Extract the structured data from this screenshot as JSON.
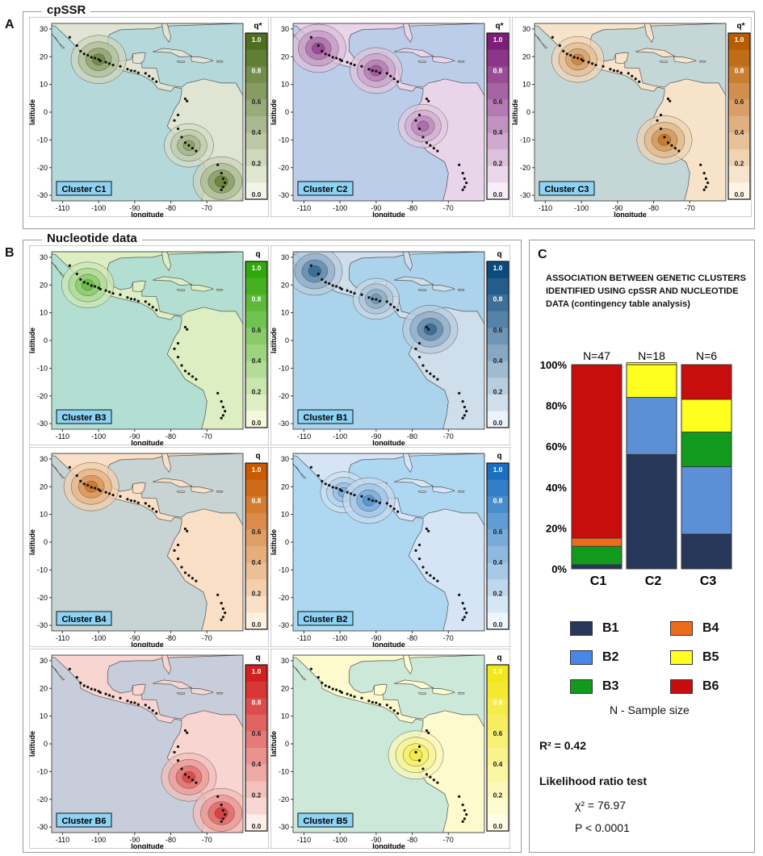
{
  "sections": {
    "a": {
      "letter": "A",
      "title": "cpSSR"
    },
    "b": {
      "letter": "B",
      "title": "Nucleotide data"
    },
    "c": {
      "letter": "C",
      "title": "ASSOCIATION BETWEEN GENETIC CLUSTERS IDENTIFIED USING cpSSR AND NUCLEOTIDE DATA (contingency table analysis)"
    }
  },
  "maps": {
    "x_label": "longitude",
    "y_label": "latitude",
    "x_ticks": [
      "-110",
      "-100",
      "-90",
      "-80",
      "-70"
    ],
    "y_ticks": [
      "30",
      "20",
      "10",
      "0",
      "-10",
      "-20",
      "-30"
    ],
    "scale_ticks": [
      "1.0",
      "0.8",
      "0.6",
      "0.4",
      "0.2",
      "0.0"
    ],
    "ocean_color": "#8fd3f4",
    "panels": [
      {
        "id": "C1",
        "label": "Cluster C1",
        "qhead": "q*",
        "color": "#4f6f1e",
        "low": "#f3f5ea",
        "hotspots": [
          [
            -100,
            19,
            0.9
          ],
          [
            -75,
            -12,
            0.7
          ],
          [
            -66,
            -25,
            0.95
          ]
        ]
      },
      {
        "id": "C2",
        "label": "Cluster C2",
        "qhead": "q*",
        "color": "#7d1f7a",
        "low": "#f8eef8",
        "hotspots": [
          [
            -106,
            23,
            0.9
          ],
          [
            -90,
            15,
            0.8
          ],
          [
            -77,
            -5,
            0.7
          ]
        ]
      },
      {
        "id": "C3",
        "label": "Cluster C3",
        "qhead": "q*",
        "color": "#b85c00",
        "low": "#fff5e6",
        "hotspots": [
          [
            -101,
            19,
            0.8
          ],
          [
            -77,
            -10,
            0.9
          ]
        ]
      },
      {
        "id": "B3",
        "label": "Cluster B3",
        "qhead": "q",
        "color": "#2fa80b",
        "low": "#f5f8dc",
        "hotspots": [
          [
            -103,
            20,
            0.8
          ]
        ]
      },
      {
        "id": "B1",
        "label": "Cluster B1",
        "qhead": "q",
        "color": "#0b4a7d",
        "low": "#eaf2fa",
        "hotspots": [
          [
            -107,
            25,
            0.9
          ],
          [
            -90,
            15,
            0.6
          ],
          [
            -75,
            4,
            0.9
          ]
        ]
      },
      {
        "id": "B4",
        "label": "Cluster B4",
        "qhead": "q",
        "color": "#c85a00",
        "low": "#fff1e0",
        "hotspots": [
          [
            -102,
            20,
            0.9
          ]
        ]
      },
      {
        "id": "B2",
        "label": "Cluster B2",
        "qhead": "q",
        "color": "#1a6fc0",
        "low": "#eef5fc",
        "hotspots": [
          [
            -99,
            18,
            0.6
          ],
          [
            -92,
            15,
            0.8
          ]
        ]
      },
      {
        "id": "B6",
        "label": "Cluster B6",
        "qhead": "q",
        "color": "#d21f1f",
        "low": "#fdeee8",
        "hotspots": [
          [
            -75,
            -12,
            0.9
          ],
          [
            -66,
            -25,
            0.95
          ]
        ]
      },
      {
        "id": "B5",
        "label": "Cluster B5",
        "qhead": "q",
        "color": "#f2e71a",
        "low": "#fffde6",
        "hotspots": [
          [
            -79,
            -4,
            0.9
          ]
        ]
      }
    ]
  },
  "chart_data": {
    "type": "bar",
    "stacked": true,
    "categories": [
      "C1",
      "C2",
      "C3"
    ],
    "top_labels": [
      "N=47",
      "N=18",
      "N=6"
    ],
    "ylim": [
      0,
      100
    ],
    "y_ticks": [
      "100%",
      "80%",
      "60%",
      "40%",
      "20%",
      "0%"
    ],
    "series": [
      {
        "name": "B1",
        "color": "#27375a",
        "values": [
          2,
          56,
          17
        ]
      },
      {
        "name": "B2",
        "color": "#5b8fd6",
        "values": [
          0,
          28,
          33
        ]
      },
      {
        "name": "B3",
        "color": "#119a1d",
        "values": [
          9,
          0,
          17
        ]
      },
      {
        "name": "B4",
        "color": "#ec6c1b",
        "values": [
          4,
          0,
          0
        ]
      },
      {
        "name": "B5",
        "color": "#ffff1f",
        "values": [
          0,
          17,
          16
        ]
      },
      {
        "name": "B6",
        "color": "#c80d0d",
        "values": [
          85,
          0,
          17
        ]
      }
    ]
  },
  "legend": {
    "items": [
      {
        "name": "B1",
        "color": "#27375a"
      },
      {
        "name": "B4",
        "color": "#ec6c1b"
      },
      {
        "name": "B2",
        "color": "#4a86e8"
      },
      {
        "name": "B5",
        "color": "#ffff1f"
      },
      {
        "name": "B3",
        "color": "#119a1d"
      },
      {
        "name": "B6",
        "color": "#c80d0d"
      }
    ],
    "n_note": "N - Sample size"
  },
  "stats": {
    "r2": "R² = 0.42",
    "test_title": "Likelihood ratio test",
    "chi": "χ² = 76.97",
    "p": "P < 0.0001"
  }
}
